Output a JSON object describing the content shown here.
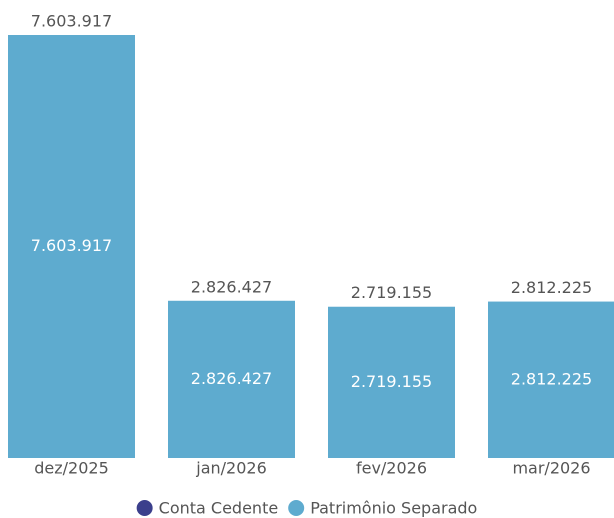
{
  "chart_data": {
    "type": "stacked_bar",
    "categories": [
      "dez/2025",
      "jan/2026",
      "fev/2026",
      "mar/2026"
    ],
    "series": [
      {
        "name": "Conta Cedente",
        "color": "#3b3f8c",
        "values": [
          0,
          0,
          0,
          0
        ]
      },
      {
        "name": "Patrimônio Separado",
        "color": "#5eabcf",
        "values": [
          7603917,
          2826427,
          2719155,
          2812225
        ],
        "value_labels": [
          "7.603.917",
          "2.826.427",
          "2.719.155",
          "2.812.225"
        ]
      }
    ],
    "ylim": [
      0,
      7603917
    ]
  }
}
